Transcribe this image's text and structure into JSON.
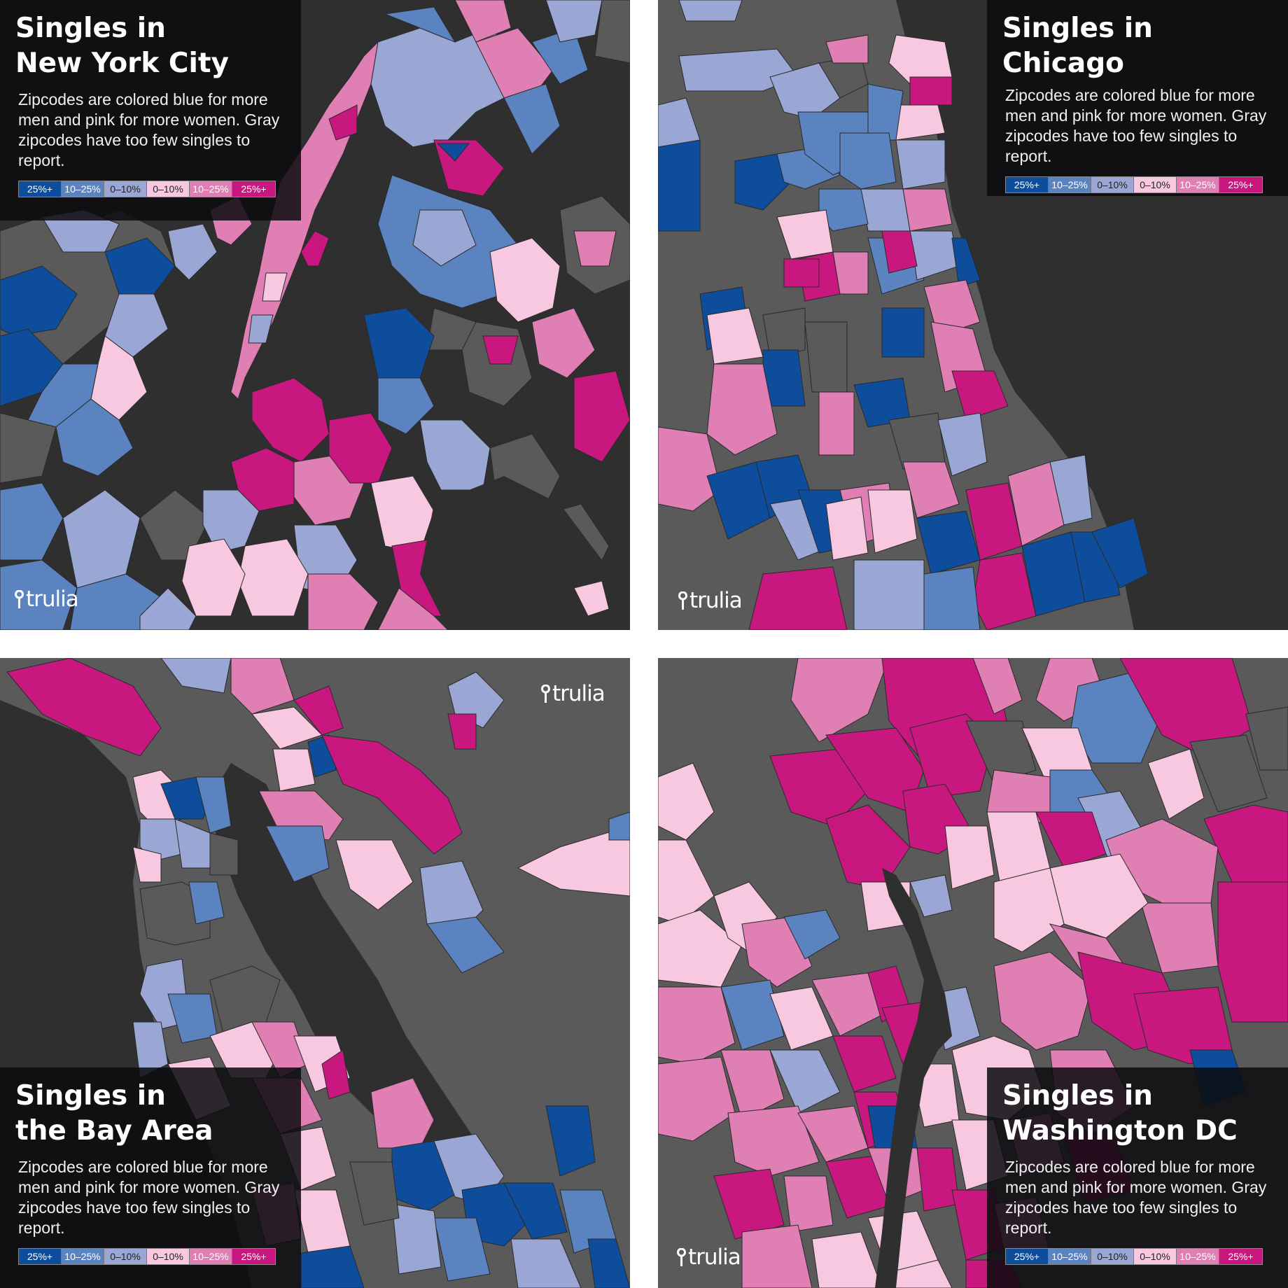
{
  "legend_colors": [
    "#0d4d9c",
    "#5b83c0",
    "#9aa6d4",
    "#f7c8e0",
    "#e07fb4",
    "#c8177e"
  ],
  "no_data_color": "#5a5a5a",
  "water_color": "#2f2f30",
  "panels": [
    {
      "title_line1": "Singles in",
      "title_line2": "New York City",
      "description": "Zipcodes are colored blue for more men and pink for more women. Gray zipcodes have too few singles to report.",
      "legend": [
        "25%+",
        "10–25%",
        "0–10%",
        "0–10%",
        "10–25%",
        "25%+"
      ],
      "logo": "trulia"
    },
    {
      "title_line1": "Singles in Chicago",
      "title_line2": "",
      "description": "Zipcodes are colored blue for more men and pink for more women. Gray zipcodes have too few singles to report.",
      "legend": [
        "25%+",
        "10–25%",
        "0–10%",
        "0–10%",
        "10–25%",
        "25%+"
      ],
      "logo": "trulia"
    },
    {
      "title_line1": "Singles in",
      "title_line2": "the Bay Area",
      "description": "Zipcodes are colored blue for more men and pink for more women. Gray zipcodes have too few singles to report.",
      "legend": [
        "25%+",
        "10–25%",
        "0–10%",
        "0–10%",
        "10–25%",
        "25%+"
      ],
      "logo": "trulia"
    },
    {
      "title_line1": "Singles in",
      "title_line2": "Washington DC",
      "description": "Zipcodes are colored blue for more men and pink for more women. Gray zipcodes have too few singles to report.",
      "legend": [
        "25%+",
        "10–25%",
        "0–10%",
        "0–10%",
        "10–25%",
        "25%+"
      ],
      "logo": "trulia"
    }
  ]
}
